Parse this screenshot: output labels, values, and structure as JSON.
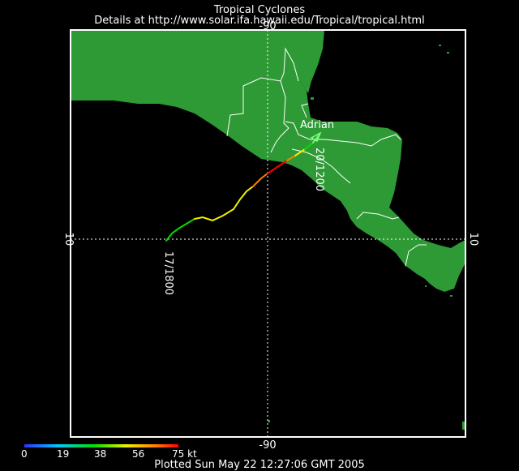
{
  "header": {
    "title": "Tropical Cyclones",
    "subtitle": "Details at http://www.solar.ifa.hawaii.edu/Tropical/tropical.html"
  },
  "map": {
    "meridian_label": "-90",
    "parallel_label": "10",
    "storm_name": "Adrian",
    "start_time_label": "17/1800",
    "end_time_label": "20/1200",
    "colors": {
      "land": "#2e9a35",
      "ocean": "#000000",
      "border": "#ffffff",
      "grid": "#ffffff"
    }
  },
  "legend": {
    "ticks": [
      "0",
      "19",
      "38",
      "56",
      "75 kt"
    ],
    "colors": [
      "#3030ff",
      "#00c8ff",
      "#00e000",
      "#f0f000",
      "#ff8000",
      "#ff0000"
    ]
  },
  "footer": {
    "plotted": "Plotted Sun May 22 12:27:06 GMT 2005"
  }
}
